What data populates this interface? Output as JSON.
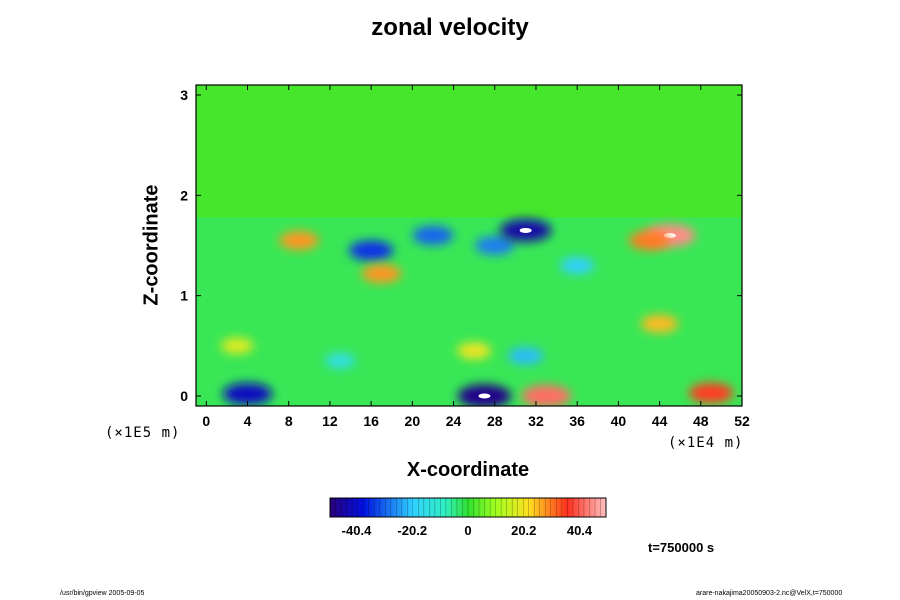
{
  "chart_data": {
    "type": "heatmap",
    "title": "zonal velocity",
    "xlabel": "X-coordinate",
    "ylabel": "Z-coordinate",
    "x_unit": "(×1E4 m)",
    "y_unit": "(×1E5 m)",
    "x_ticks": [
      "0",
      "4",
      "8",
      "12",
      "16",
      "20",
      "24",
      "28",
      "32",
      "36",
      "40",
      "44",
      "48",
      "52"
    ],
    "y_ticks": [
      "0",
      "1",
      "2",
      "3"
    ],
    "xlim": [
      -1,
      52
    ],
    "ylim": [
      -0.1,
      3.1
    ],
    "colorbar": {
      "range": [
        -50,
        50
      ],
      "ticks": [
        "-40.4",
        "-20.2",
        "0",
        "20.2",
        "40.4"
      ]
    },
    "features": [
      {
        "x": 45,
        "z": 1.6,
        "value": 45
      },
      {
        "x": 43,
        "z": 1.55,
        "value": 30
      },
      {
        "x": 9,
        "z": 1.55,
        "value": 28
      },
      {
        "x": 16,
        "z": 1.45,
        "value": -35
      },
      {
        "x": 22,
        "z": 1.6,
        "value": -30
      },
      {
        "x": 28,
        "z": 1.5,
        "value": -28
      },
      {
        "x": 31,
        "z": 1.65,
        "value": -45
      },
      {
        "x": 17,
        "z": 1.22,
        "value": 28
      },
      {
        "x": 36,
        "z": 1.3,
        "value": -20
      },
      {
        "x": 44,
        "z": 0.72,
        "value": 25
      },
      {
        "x": 4,
        "z": 0.02,
        "value": -42
      },
      {
        "x": 27,
        "z": 0.0,
        "value": -48
      },
      {
        "x": 33,
        "z": 0.0,
        "value": 42
      },
      {
        "x": 49,
        "z": 0.03,
        "value": 35
      },
      {
        "x": 3,
        "z": 0.5,
        "value": 18
      },
      {
        "x": 26,
        "z": 0.45,
        "value": 20
      },
      {
        "x": 31,
        "z": 0.4,
        "value": -22
      },
      {
        "x": 13,
        "z": 0.35,
        "value": -15
      }
    ]
  },
  "time_label": "t=750000 s",
  "footer_left": "/usr/bin/gpview 2005-09-05",
  "footer_right": "arare-nakajima20050903-2.nc@VelX,t=750000"
}
